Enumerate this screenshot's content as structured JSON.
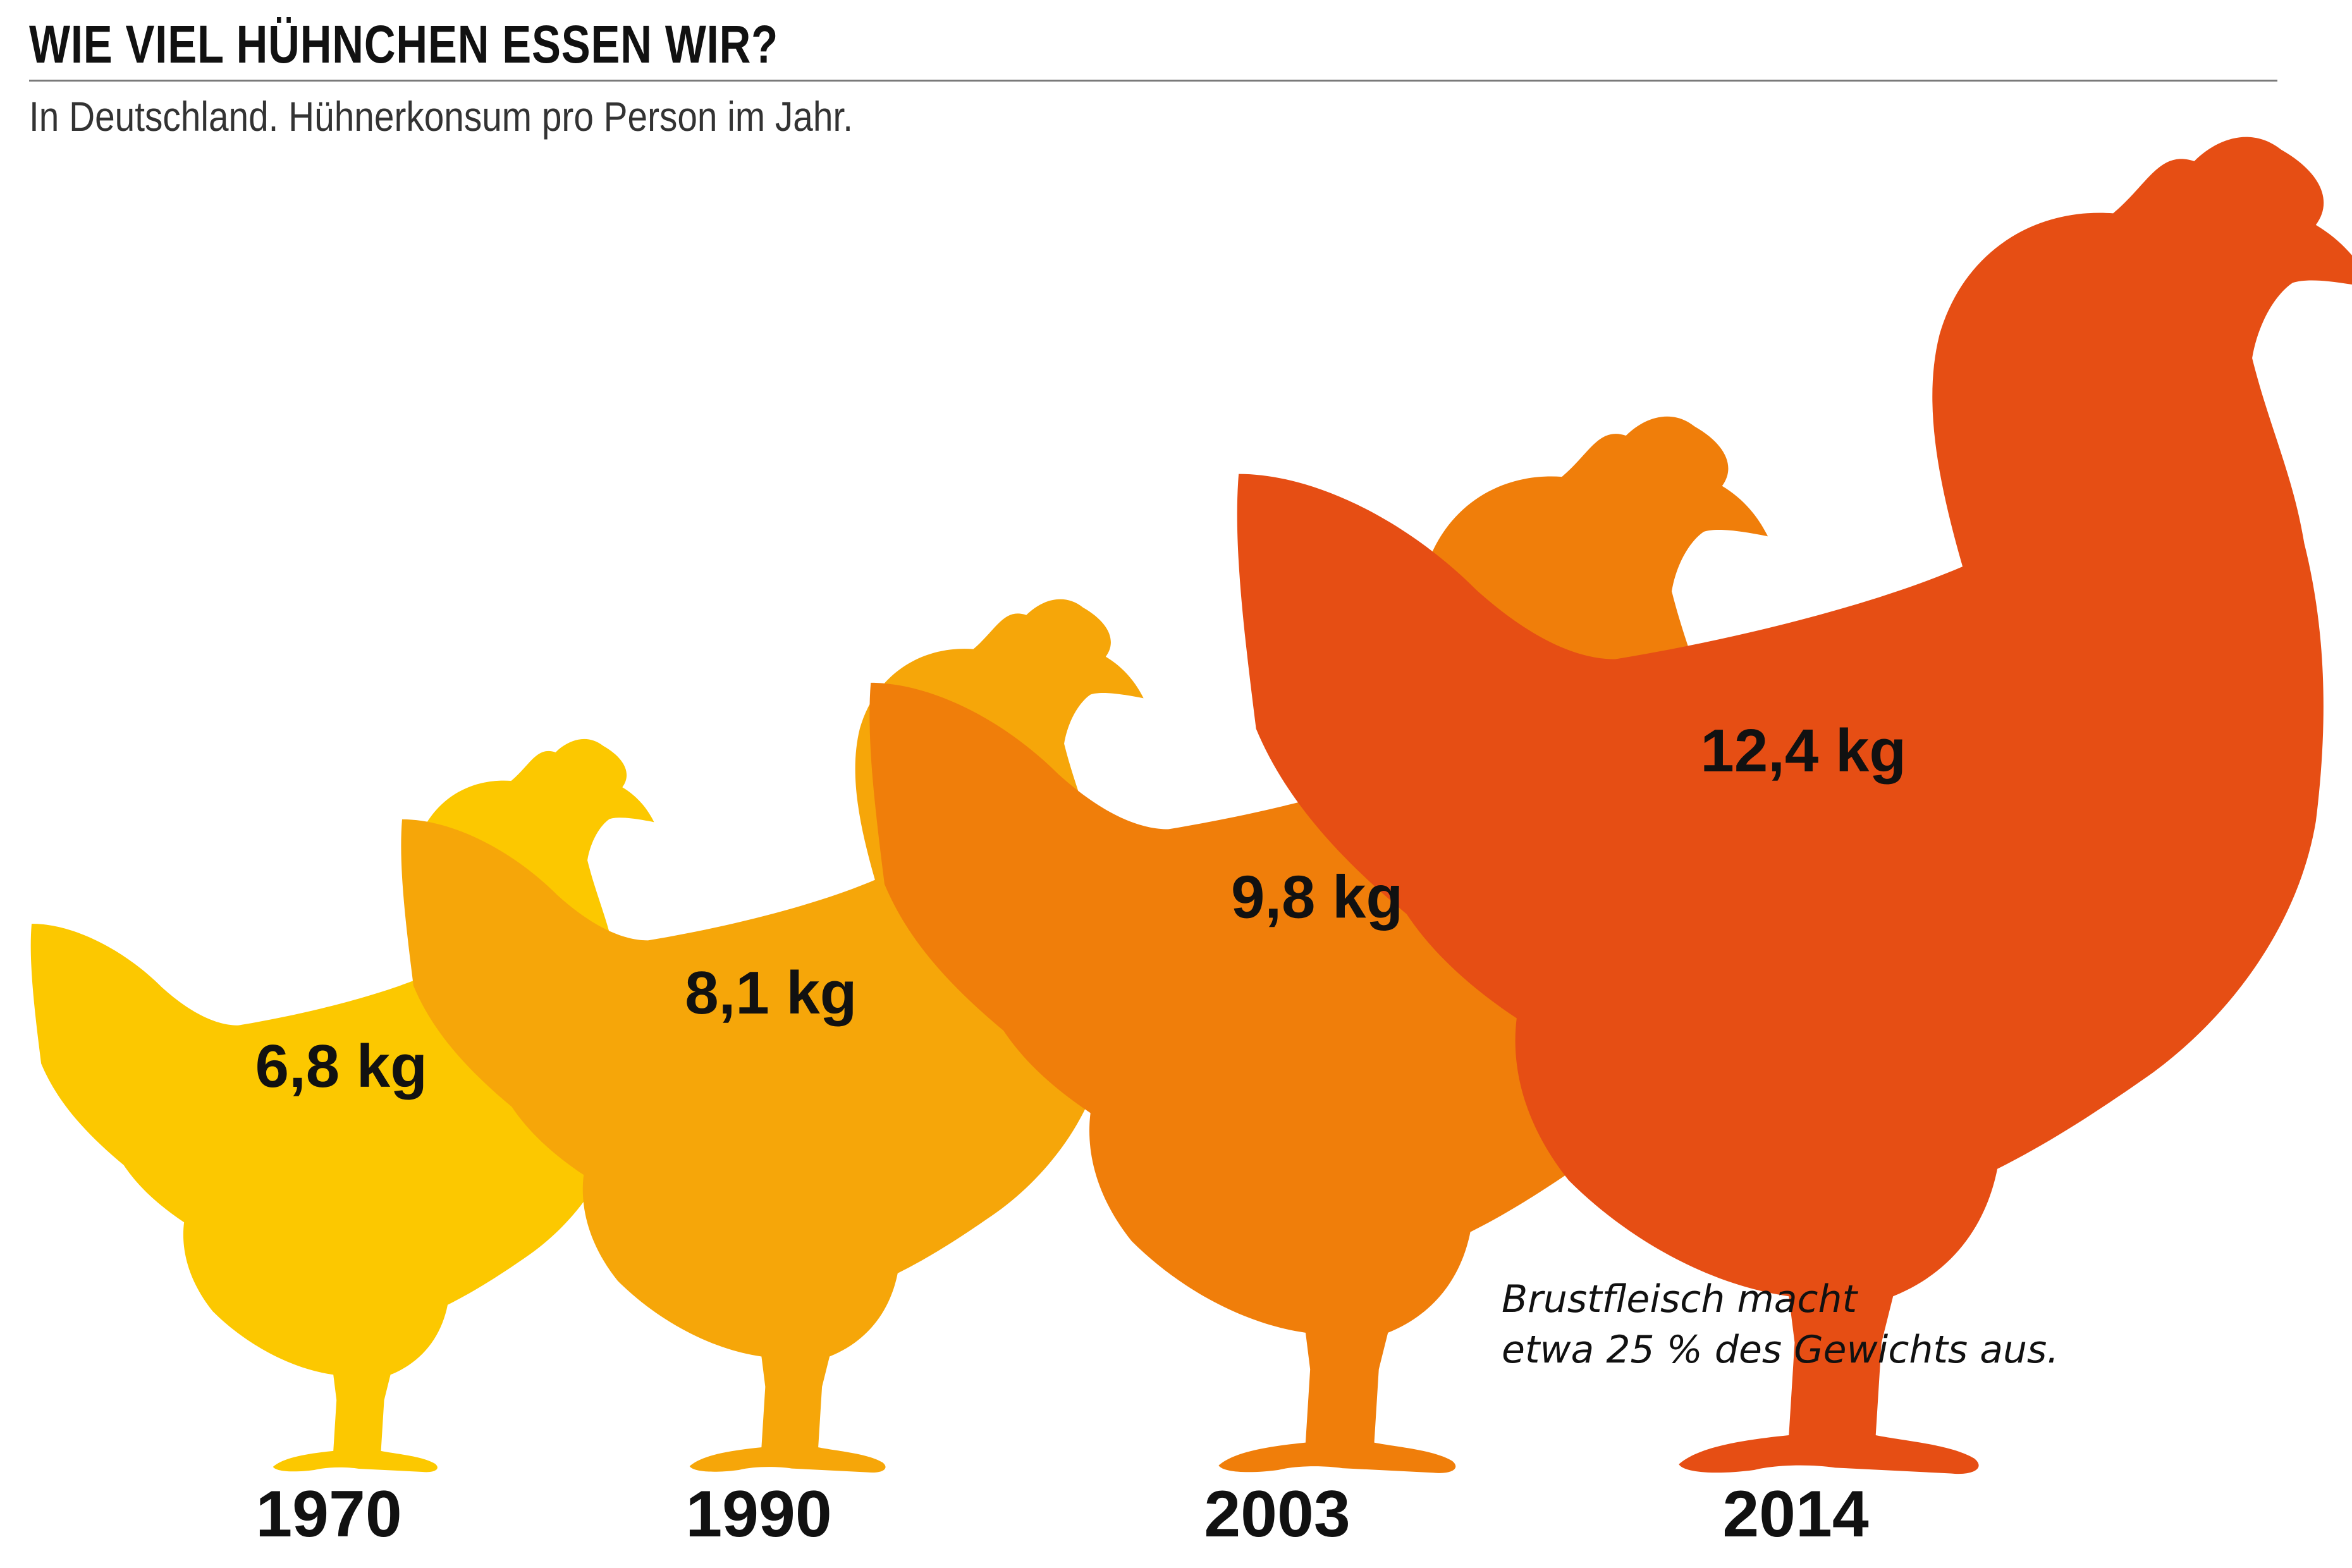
{
  "title": "WIE VIEL HÜHNCHEN ESSEN WIR?",
  "subtitle": "In Deutschland. Hühnerkonsum pro Person im Jahr.",
  "annotation": {
    "line1": "Brustfleisch macht",
    "line2": "etwa 25 % des Gewichts aus."
  },
  "chart_data": {
    "type": "bar",
    "categories": [
      "1970",
      "1990",
      "2003",
      "2014"
    ],
    "values": [
      6.8,
      8.1,
      9.8,
      12.4
    ],
    "value_labels": [
      "6,8 kg",
      "8,1 kg",
      "9,8 kg",
      "12,4 kg"
    ],
    "unit": "kg",
    "colors": [
      "#FCC800",
      "#F6A609",
      "#F07E0A",
      "#E64E14"
    ],
    "legend": "none",
    "grid": false
  }
}
